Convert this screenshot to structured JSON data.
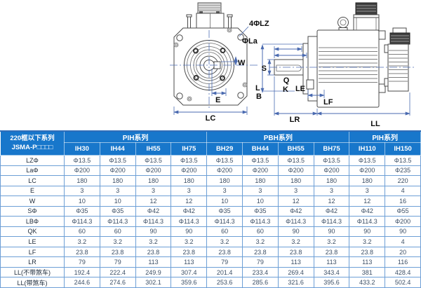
{
  "diagram": {
    "labels": {
      "four_lz": "4ΦLZ",
      "la": "ΦLa",
      "w": "W",
      "e": "E",
      "lc": "LC",
      "s": "S",
      "q": "Q",
      "k": "K",
      "l": "L",
      "b": "B",
      "le": "LE",
      "lf": "LF",
      "lr": "LR",
      "ll": "LL"
    },
    "colors": {
      "outline": "#4a4a4a",
      "dimension": "#4a6ab0"
    }
  },
  "table": {
    "corner_line1": "220框以下系列",
    "corner_line2": "JSMA-P□□□□",
    "groups": [
      {
        "label": "PIH系列",
        "span": 4
      },
      {
        "label": "PBH系列",
        "span": 4
      },
      {
        "label": "PIH系列",
        "span": 2
      }
    ],
    "columns": [
      "IH30",
      "IH44",
      "IH55",
      "IH75",
      "BH29",
      "BH44",
      "BH55",
      "BH75",
      "IH110",
      "IH150"
    ],
    "rows": [
      {
        "label": "LZΦ",
        "values": [
          "Φ13.5",
          "Φ13.5",
          "Φ13.5",
          "Φ13.5",
          "Φ13.5",
          "Φ13.5",
          "Φ13.5",
          "Φ13.5",
          "Φ13.5",
          "Φ13.5"
        ]
      },
      {
        "label": "LaΦ",
        "values": [
          "Φ200",
          "Φ200",
          "Φ200",
          "Φ200",
          "Φ200",
          "Φ200",
          "Φ200",
          "Φ200",
          "Φ200",
          "Φ235"
        ]
      },
      {
        "label": "LC",
        "values": [
          "180",
          "180",
          "180",
          "180",
          "180",
          "180",
          "180",
          "180",
          "180",
          "220"
        ]
      },
      {
        "label": "E",
        "values": [
          "3",
          "3",
          "3",
          "3",
          "3",
          "3",
          "3",
          "3",
          "3",
          "4"
        ]
      },
      {
        "label": "W",
        "values": [
          "10",
          "10",
          "12",
          "12",
          "10",
          "10",
          "12",
          "12",
          "12",
          "16"
        ]
      },
      {
        "label": "SΦ",
        "values": [
          "Φ35",
          "Φ35",
          "Φ42",
          "Φ42",
          "Φ35",
          "Φ35",
          "Φ42",
          "Φ42",
          "Φ42",
          "Φ55"
        ]
      },
      {
        "label": "LBΦ",
        "values": [
          "Φ114.3",
          "Φ114.3",
          "Φ114.3",
          "Φ114.3",
          "Φ114.3",
          "Φ114.3",
          "Φ114.3",
          "Φ114.3",
          "Φ114.3",
          "Φ200"
        ]
      },
      {
        "label": "QK",
        "values": [
          "60",
          "60",
          "90",
          "90",
          "60",
          "60",
          "90",
          "90",
          "90",
          "90"
        ]
      },
      {
        "label": "LE",
        "values": [
          "3.2",
          "3.2",
          "3.2",
          "3.2",
          "3.2",
          "3.2",
          "3.2",
          "3.2",
          "3.2",
          "4"
        ]
      },
      {
        "label": "LF",
        "values": [
          "23.8",
          "23.8",
          "23.8",
          "23.8",
          "23.8",
          "23.8",
          "23.8",
          "23.8",
          "23.8",
          "20"
        ]
      },
      {
        "label": "LR",
        "values": [
          "79",
          "79",
          "113",
          "113",
          "79",
          "79",
          "113",
          "113",
          "113",
          "116"
        ]
      },
      {
        "label": "LL(不带煞车)",
        "values": [
          "192.4",
          "222.4",
          "249.9",
          "307.4",
          "201.4",
          "233.4",
          "269.4",
          "343.4",
          "381",
          "428.4"
        ]
      },
      {
        "label": "LL(带煞车)",
        "values": [
          "244.6",
          "274.6",
          "302.1",
          "359.6",
          "253.6",
          "285.6",
          "321.6",
          "395.6",
          "433.2",
          "502.4"
        ]
      }
    ],
    "colors": {
      "header_bg": "#1877cb",
      "header_text": "#ffffff",
      "border": "#6d9fd6",
      "outer_border": "#2f6db8",
      "cell_text": "#3c4f66"
    }
  }
}
